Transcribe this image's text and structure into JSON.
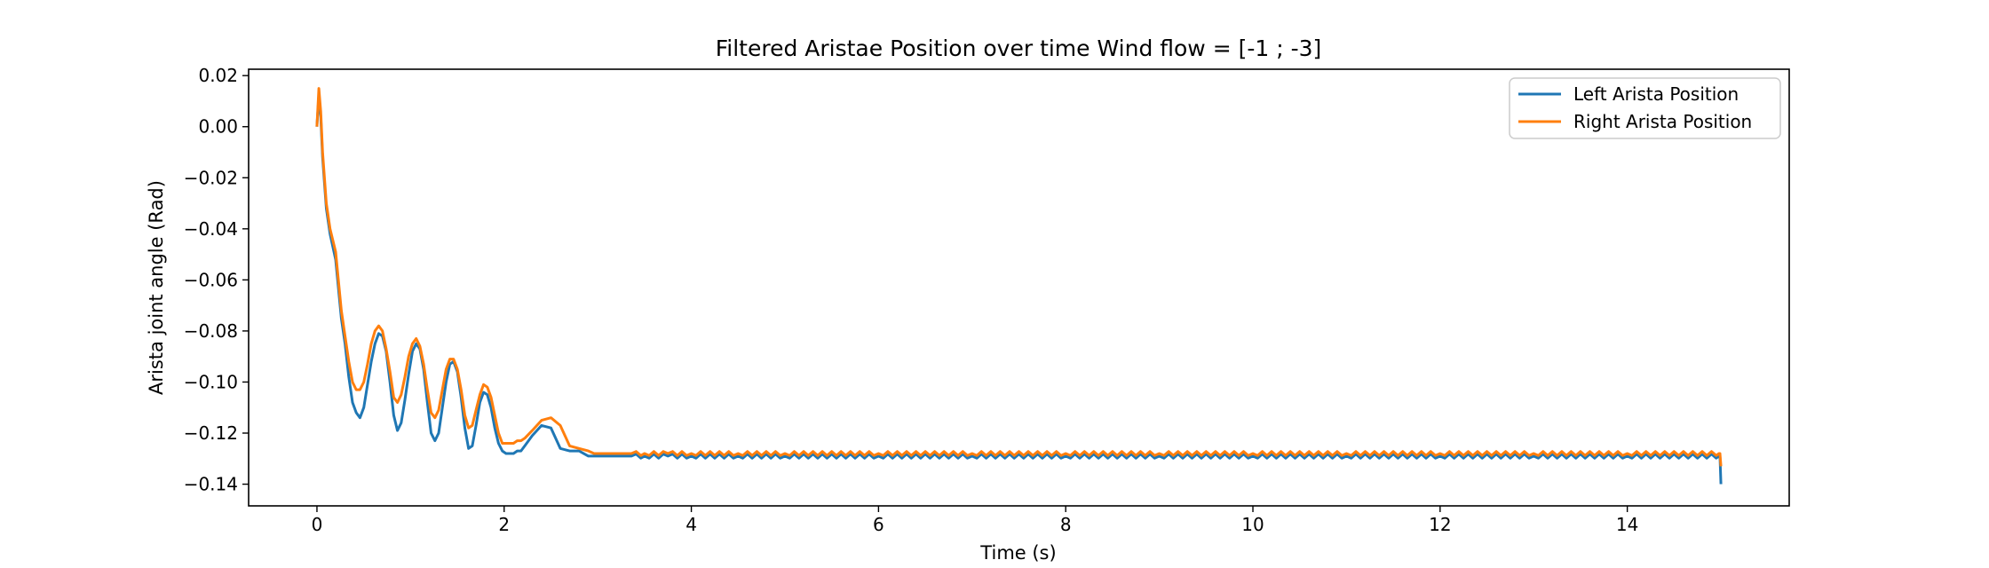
{
  "chart_data": {
    "type": "line",
    "title": "Filtered Aristae Position over time Wind flow = [-1 ; -3]",
    "xlabel": "Time (s)",
    "ylabel": "Arista joint angle (Rad)",
    "xlim": [
      -0.73,
      15.73
    ],
    "ylim": [
      -0.1485,
      0.0225
    ],
    "xticks": [
      0,
      2,
      4,
      6,
      8,
      10,
      12,
      14
    ],
    "xtick_labels": [
      "0",
      "2",
      "4",
      "6",
      "8",
      "10",
      "12",
      "14"
    ],
    "yticks": [
      0.02,
      0.0,
      -0.02,
      -0.04,
      -0.06,
      -0.08,
      -0.1,
      -0.12,
      -0.14
    ],
    "ytick_labels": [
      "0.02",
      "0.00",
      "−0.02",
      "−0.04",
      "−0.06",
      "−0.08",
      "−0.10",
      "−0.12",
      "−0.14"
    ],
    "grid": false,
    "legend": "top-right",
    "series": [
      {
        "name": "Left Arista Position",
        "color": "#1f77b4",
        "x": [
          0.0,
          0.02,
          0.04,
          0.06,
          0.1,
          0.14,
          0.2,
          0.26,
          0.3,
          0.34,
          0.38,
          0.42,
          0.46,
          0.5,
          0.54,
          0.58,
          0.62,
          0.66,
          0.7,
          0.74,
          0.78,
          0.82,
          0.86,
          0.9,
          0.94,
          0.98,
          1.02,
          1.06,
          1.1,
          1.14,
          1.18,
          1.22,
          1.26,
          1.3,
          1.34,
          1.38,
          1.42,
          1.46,
          1.5,
          1.54,
          1.58,
          1.62,
          1.66,
          1.7,
          1.74,
          1.78,
          1.82,
          1.86,
          1.9,
          1.94,
          1.98,
          2.02,
          2.06,
          2.1,
          2.14,
          2.18,
          2.22,
          2.3,
          2.4,
          2.5,
          2.6,
          2.7,
          2.8,
          2.9,
          2.96,
          3.02,
          3.08,
          3.14,
          3.2,
          3.28,
          3.36,
          3.5,
          3.75,
          4.0,
          4.5,
          5.0,
          6.0,
          7.0,
          8.0,
          9.0,
          10.0,
          11.0,
          12.0,
          13.0,
          14.0,
          14.98,
          14.99,
          15.0
        ],
        "values": [
          0.0,
          0.012,
          0.004,
          -0.012,
          -0.032,
          -0.042,
          -0.052,
          -0.075,
          -0.085,
          -0.098,
          -0.108,
          -0.112,
          -0.114,
          -0.11,
          -0.101,
          -0.092,
          -0.085,
          -0.081,
          -0.082,
          -0.088,
          -0.1,
          -0.113,
          -0.119,
          -0.116,
          -0.107,
          -0.097,
          -0.088,
          -0.085,
          -0.087,
          -0.095,
          -0.108,
          -0.12,
          -0.123,
          -0.12,
          -0.11,
          -0.1,
          -0.093,
          -0.092,
          -0.096,
          -0.106,
          -0.118,
          -0.126,
          -0.125,
          -0.117,
          -0.108,
          -0.104,
          -0.105,
          -0.11,
          -0.118,
          -0.124,
          -0.127,
          -0.128,
          -0.128,
          -0.128,
          -0.127,
          -0.127,
          -0.125,
          -0.121,
          -0.117,
          -0.118,
          -0.126,
          -0.127,
          -0.127,
          -0.129,
          -0.129,
          -0.129,
          -0.129,
          -0.129,
          -0.129,
          -0.129,
          -0.129,
          -0.129,
          -0.129,
          -0.129,
          -0.129,
          -0.129,
          -0.129,
          -0.129,
          -0.129,
          -0.129,
          -0.129,
          -0.129,
          -0.129,
          -0.129,
          -0.129,
          -0.129,
          -0.129,
          -0.14
        ]
      },
      {
        "name": "Right Arista Position",
        "color": "#ff7f0e",
        "x": [
          0.0,
          0.02,
          0.04,
          0.06,
          0.1,
          0.14,
          0.2,
          0.26,
          0.3,
          0.34,
          0.38,
          0.42,
          0.46,
          0.5,
          0.54,
          0.58,
          0.62,
          0.66,
          0.7,
          0.74,
          0.78,
          0.82,
          0.86,
          0.9,
          0.94,
          0.98,
          1.02,
          1.06,
          1.1,
          1.14,
          1.18,
          1.22,
          1.26,
          1.3,
          1.34,
          1.38,
          1.42,
          1.46,
          1.5,
          1.54,
          1.58,
          1.62,
          1.66,
          1.7,
          1.74,
          1.78,
          1.82,
          1.86,
          1.9,
          1.94,
          1.98,
          2.02,
          2.06,
          2.1,
          2.14,
          2.18,
          2.22,
          2.3,
          2.4,
          2.5,
          2.6,
          2.7,
          2.8,
          2.9,
          2.96,
          3.02,
          3.08,
          3.14,
          3.2,
          3.28,
          3.36,
          3.5,
          3.75,
          4.0,
          4.5,
          5.0,
          6.0,
          7.0,
          8.0,
          9.0,
          10.0,
          11.0,
          12.0,
          13.0,
          14.0,
          14.98,
          14.99,
          15.0
        ],
        "values": [
          0.0,
          0.015,
          0.006,
          -0.01,
          -0.03,
          -0.04,
          -0.049,
          -0.072,
          -0.082,
          -0.092,
          -0.1,
          -0.103,
          -0.103,
          -0.1,
          -0.093,
          -0.085,
          -0.08,
          -0.078,
          -0.08,
          -0.087,
          -0.096,
          -0.106,
          -0.108,
          -0.105,
          -0.098,
          -0.09,
          -0.085,
          -0.083,
          -0.086,
          -0.093,
          -0.103,
          -0.112,
          -0.114,
          -0.111,
          -0.103,
          -0.095,
          -0.091,
          -0.091,
          -0.095,
          -0.103,
          -0.113,
          -0.118,
          -0.117,
          -0.111,
          -0.105,
          -0.101,
          -0.102,
          -0.106,
          -0.113,
          -0.12,
          -0.124,
          -0.124,
          -0.124,
          -0.124,
          -0.123,
          -0.123,
          -0.122,
          -0.119,
          -0.115,
          -0.114,
          -0.117,
          -0.125,
          -0.126,
          -0.127,
          -0.128,
          -0.128,
          -0.128,
          -0.128,
          -0.128,
          -0.128,
          -0.128,
          -0.128,
          -0.128,
          -0.128,
          -0.128,
          -0.128,
          -0.128,
          -0.128,
          -0.128,
          -0.128,
          -0.128,
          -0.128,
          -0.128,
          -0.128,
          -0.128,
          -0.128,
          -0.128,
          -0.133
        ]
      }
    ]
  }
}
